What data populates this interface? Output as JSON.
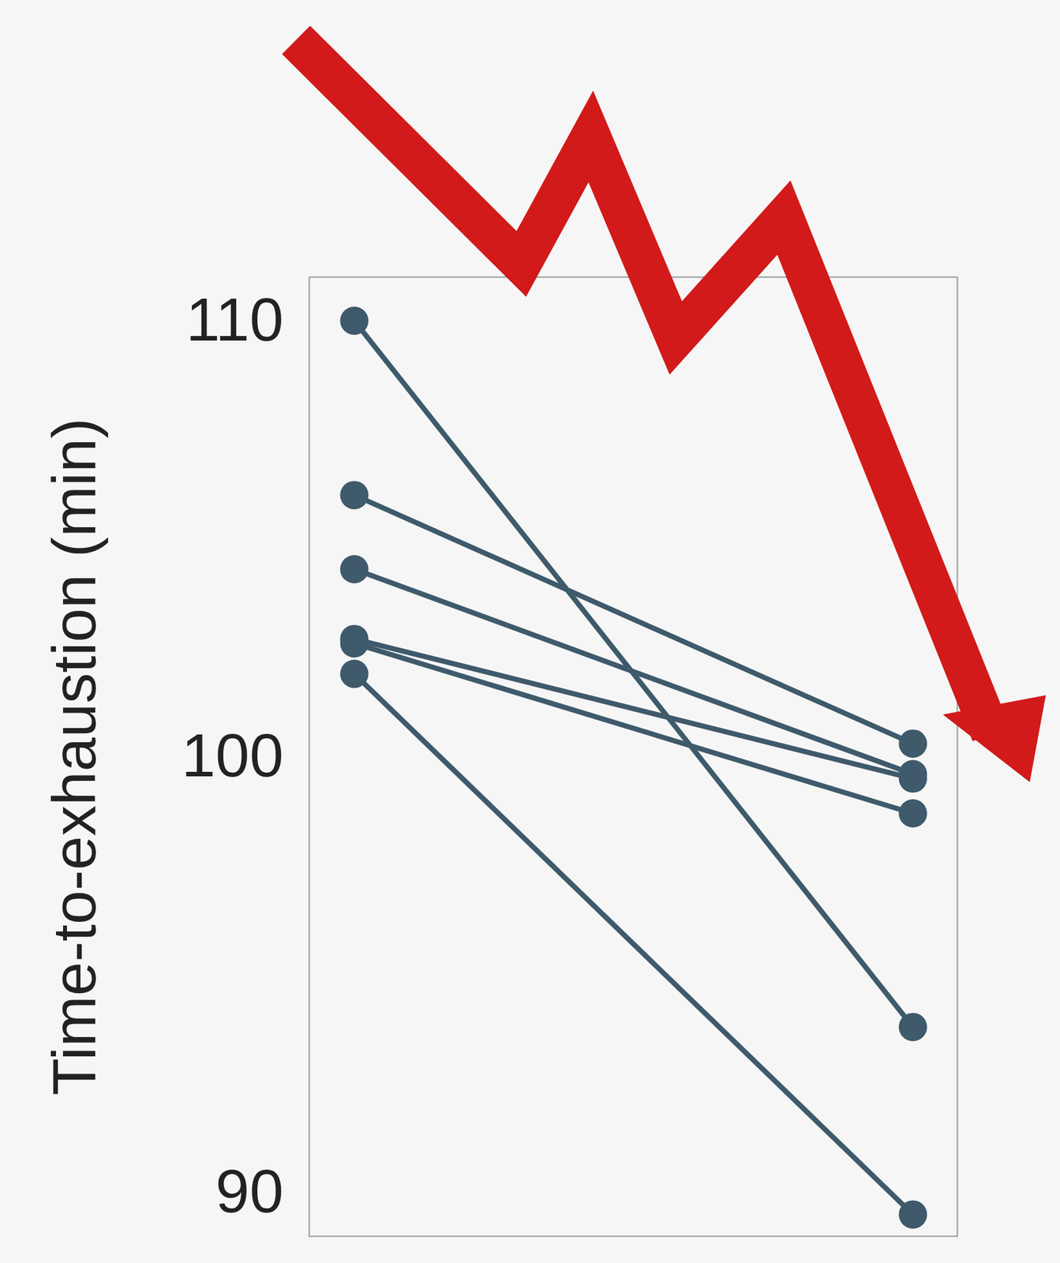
{
  "chart_data": {
    "type": "line",
    "y_label": "Time-to-exhaustion (min)",
    "categories": [
      null,
      null
    ],
    "series": [
      {
        "color": "#3e5a6b",
        "values": [
          110.0,
          93.8
        ]
      },
      {
        "color": "#3e5a6b",
        "values": [
          106.0,
          100.3
        ]
      },
      {
        "color": "#3e5a6b",
        "values": [
          104.3,
          99.6
        ]
      },
      {
        "color": "#3e5a6b",
        "values": [
          102.7,
          99.5
        ]
      },
      {
        "color": "#3e5a6b",
        "values": [
          102.6,
          98.7
        ]
      },
      {
        "color": "#3e5a6b",
        "values": [
          101.9,
          89.5
        ]
      }
    ],
    "marker": "circle",
    "ylim": [
      89,
      111
    ],
    "yticks": [
      90,
      100,
      110
    ],
    "tick_labels": "y",
    "grid": false
  }
}
